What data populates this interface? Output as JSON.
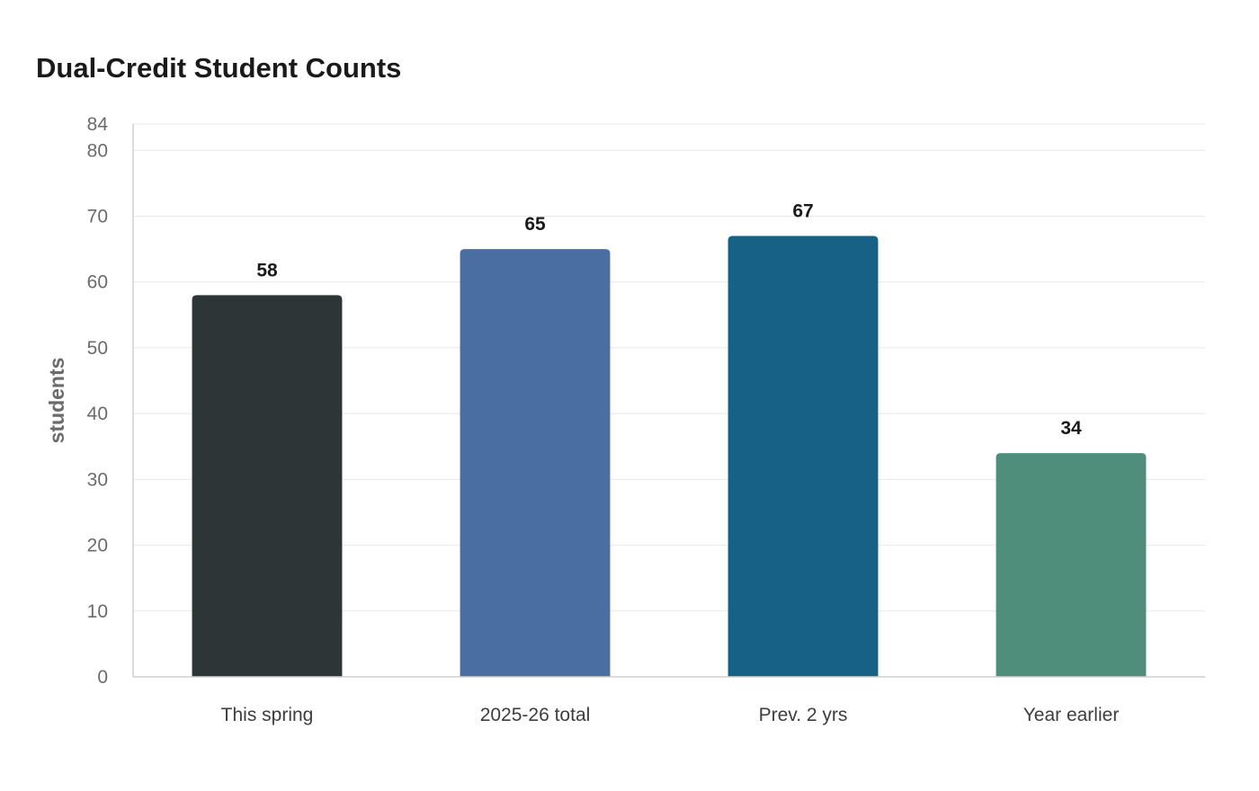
{
  "chart_data": {
    "type": "bar",
    "title": "Dual-Credit Student Counts",
    "xlabel": "",
    "ylabel": "students",
    "categories": [
      "This spring",
      "2025-26 total",
      "Prev. 2 yrs",
      "Year earlier"
    ],
    "values": [
      58,
      65,
      67,
      34
    ],
    "colors": [
      "#2e3536",
      "#4a6ea1",
      "#186186",
      "#4f8e7a"
    ],
    "ylim": [
      0,
      84
    ],
    "yticks": [
      0,
      10,
      20,
      30,
      40,
      50,
      60,
      70,
      80,
      84
    ],
    "grid": true,
    "legend": "none"
  }
}
